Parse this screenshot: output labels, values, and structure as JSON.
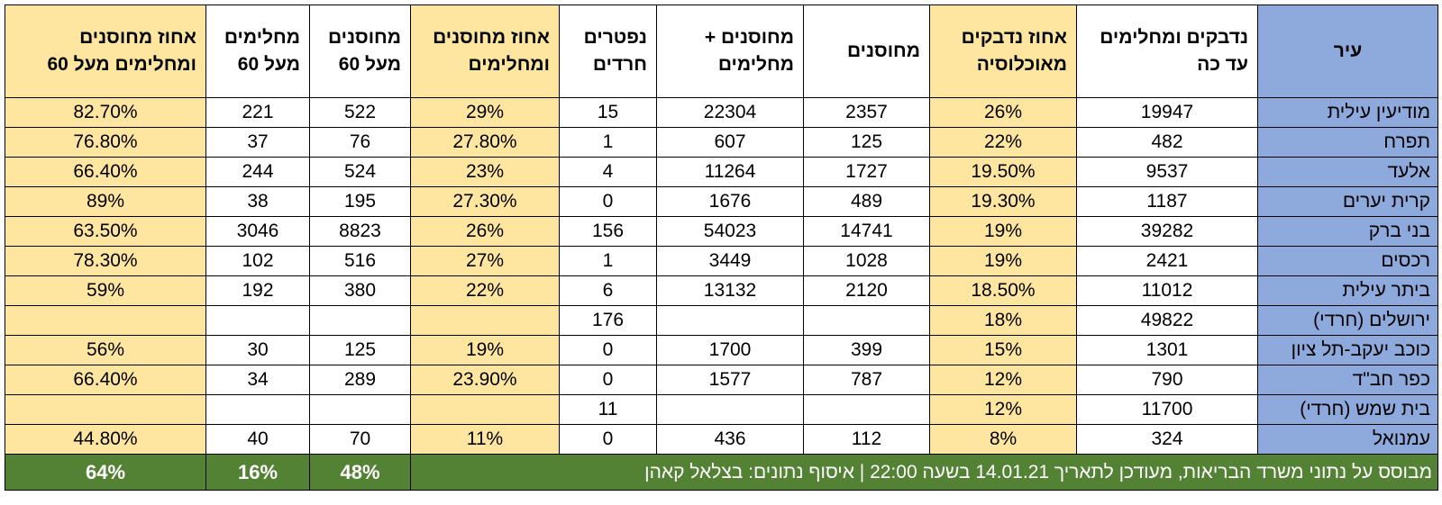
{
  "headers": {
    "city": "עיר",
    "vaccinated_recovered_total": "נדבקים ומחלימים עד כה",
    "percent_infected": "אחוז נדבקים מאוכלוסיה",
    "vaccinated": "מחוסנים",
    "vaccinated_plus_recovered": "מחוסנים + מחלימים",
    "haredi_deaths": "נפטרים חרדים",
    "percent_vaccinated_recovered": "אחוז מחוסנים ומחלימים",
    "vaccinated_over_60": "מחוסנים מעל 60",
    "recovered_over_60": "מחלימים מעל 60",
    "percent_over_60": "אחוז מחוסנים ומחלימים מעל 60"
  },
  "rows": [
    {
      "city": "מודיעין עילית",
      "total": "19947",
      "pct_infected": "26%",
      "vaccinated": "2357",
      "vacc_plus_rec": "22304",
      "deaths": "15",
      "pct_vr": "29%",
      "vacc_60": "522",
      "rec_60": "221",
      "pct_60": "82.70%"
    },
    {
      "city": "תפרח",
      "total": "482",
      "pct_infected": "22%",
      "vaccinated": "125",
      "vacc_plus_rec": "607",
      "deaths": "1",
      "pct_vr": "27.80%",
      "vacc_60": "76",
      "rec_60": "37",
      "pct_60": "76.80%"
    },
    {
      "city": "אלעד",
      "total": "9537",
      "pct_infected": "19.50%",
      "vaccinated": "1727",
      "vacc_plus_rec": "11264",
      "deaths": "4",
      "pct_vr": "23%",
      "vacc_60": "524",
      "rec_60": "244",
      "pct_60": "66.40%"
    },
    {
      "city": "קרית יערים",
      "total": "1187",
      "pct_infected": "19.30%",
      "vaccinated": "489",
      "vacc_plus_rec": "1676",
      "deaths": "0",
      "pct_vr": "27.30%",
      "vacc_60": "195",
      "rec_60": "38",
      "pct_60": "89%"
    },
    {
      "city": "בני ברק",
      "total": "39282",
      "pct_infected": "19%",
      "vaccinated": "14741",
      "vacc_plus_rec": "54023",
      "deaths": "156",
      "pct_vr": "26%",
      "vacc_60": "8823",
      "rec_60": "3046",
      "pct_60": "63.50%"
    },
    {
      "city": "רכסים",
      "total": "2421",
      "pct_infected": "19%",
      "vaccinated": "1028",
      "vacc_plus_rec": "3449",
      "deaths": "1",
      "pct_vr": "27%",
      "vacc_60": "516",
      "rec_60": "102",
      "pct_60": "78.30%"
    },
    {
      "city": "ביתר עילית",
      "total": "11012",
      "pct_infected": "18.50%",
      "vaccinated": "2120",
      "vacc_plus_rec": "13132",
      "deaths": "6",
      "pct_vr": "22%",
      "vacc_60": "380",
      "rec_60": "192",
      "pct_60": "59%"
    },
    {
      "city": "ירושלים (חרדי)",
      "total": "49822",
      "pct_infected": "18%",
      "vaccinated": "",
      "vacc_plus_rec": "",
      "deaths": "176",
      "pct_vr": "",
      "vacc_60": "",
      "rec_60": "",
      "pct_60": ""
    },
    {
      "city": "כוכב יעקב-תל ציון",
      "total": "1301",
      "pct_infected": "15%",
      "vaccinated": "399",
      "vacc_plus_rec": "1700",
      "deaths": "0",
      "pct_vr": "19%",
      "vacc_60": "125",
      "rec_60": "30",
      "pct_60": "56%"
    },
    {
      "city": "כפר חב\"ד",
      "total": "790",
      "pct_infected": "12%",
      "vaccinated": "787",
      "vacc_plus_rec": "1577",
      "deaths": "0",
      "pct_vr": "23.90%",
      "vacc_60": "289",
      "rec_60": "34",
      "pct_60": "66.40%"
    },
    {
      "city": "בית שמש (חרדי)",
      "total": "11700",
      "pct_infected": "12%",
      "vaccinated": "",
      "vacc_plus_rec": "",
      "deaths": "11",
      "pct_vr": "",
      "vacc_60": "",
      "rec_60": "",
      "pct_60": ""
    },
    {
      "city": "עמנואל",
      "total": "324",
      "pct_infected": "8%",
      "vaccinated": "112",
      "vacc_plus_rec": "436",
      "deaths": "0",
      "pct_vr": "11%",
      "vacc_60": "70",
      "rec_60": "40",
      "pct_60": "44.80%"
    }
  ],
  "footer": {
    "note": "מבוסס על נתוני משרד הבריאות, מעודכן לתאריך 14.01.21 בשעה 22:00 | איסוף נתונים: בצלאל קאהן",
    "vacc_60": "48%",
    "rec_60": "16%",
    "pct_60": "64%"
  },
  "colors": {
    "city_column": "#8ea9db",
    "highlight_yellow": "#ffe6a0",
    "footer_green": "#548235"
  }
}
